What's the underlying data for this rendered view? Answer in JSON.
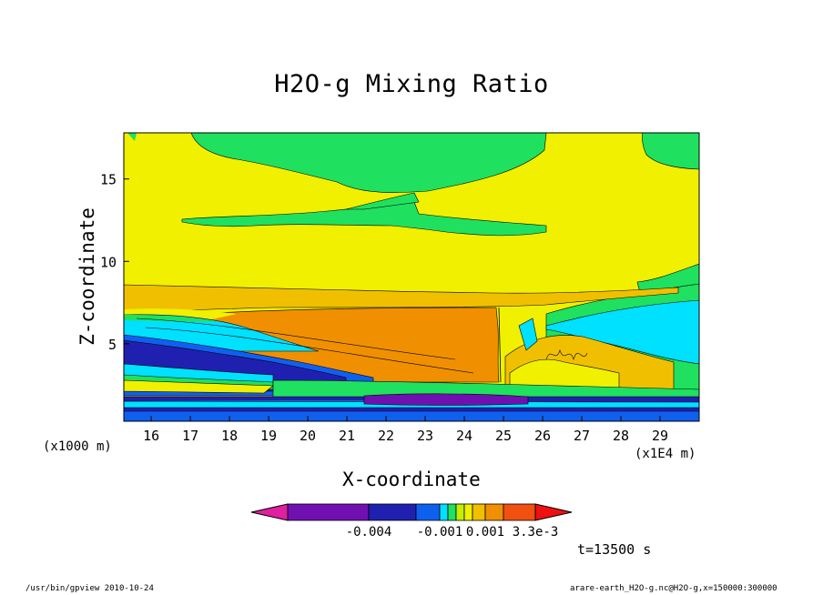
{
  "chart_data": {
    "type": "heatmap",
    "title": "H2O-g Mixing Ratio",
    "xlabel": "X-coordinate",
    "ylabel": "Z-coordinate",
    "x_unit_left": "(x1000 m)",
    "x_unit_right": "(x1E4 m)",
    "x_ticks": [
      "16",
      "17",
      "18",
      "19",
      "20",
      "21",
      "22",
      "23",
      "24",
      "25",
      "26",
      "27",
      "28",
      "29"
    ],
    "y_ticks": [
      "5",
      "10",
      "15"
    ],
    "xlim": [
      15.3,
      30.0
    ],
    "ylim": [
      0.3,
      17.8
    ],
    "colorbar": {
      "colors": [
        "#e020a0",
        "#7010b0",
        "#2020b0",
        "#1060f0",
        "#00e0ff",
        "#20e060",
        "#c0f000",
        "#f0f000",
        "#f0c000",
        "#f09000",
        "#f05010",
        "#f01010"
      ],
      "labels": [
        "-0.004",
        "-0.001",
        "0.001",
        "3.3e-3"
      ]
    },
    "time_label": "t=13500 s",
    "footer_left": "/usr/bin/gpview  2010-10-24",
    "footer_right": "arare-earth_H2O-g.nc@H2O-g,x=150000:300000"
  }
}
